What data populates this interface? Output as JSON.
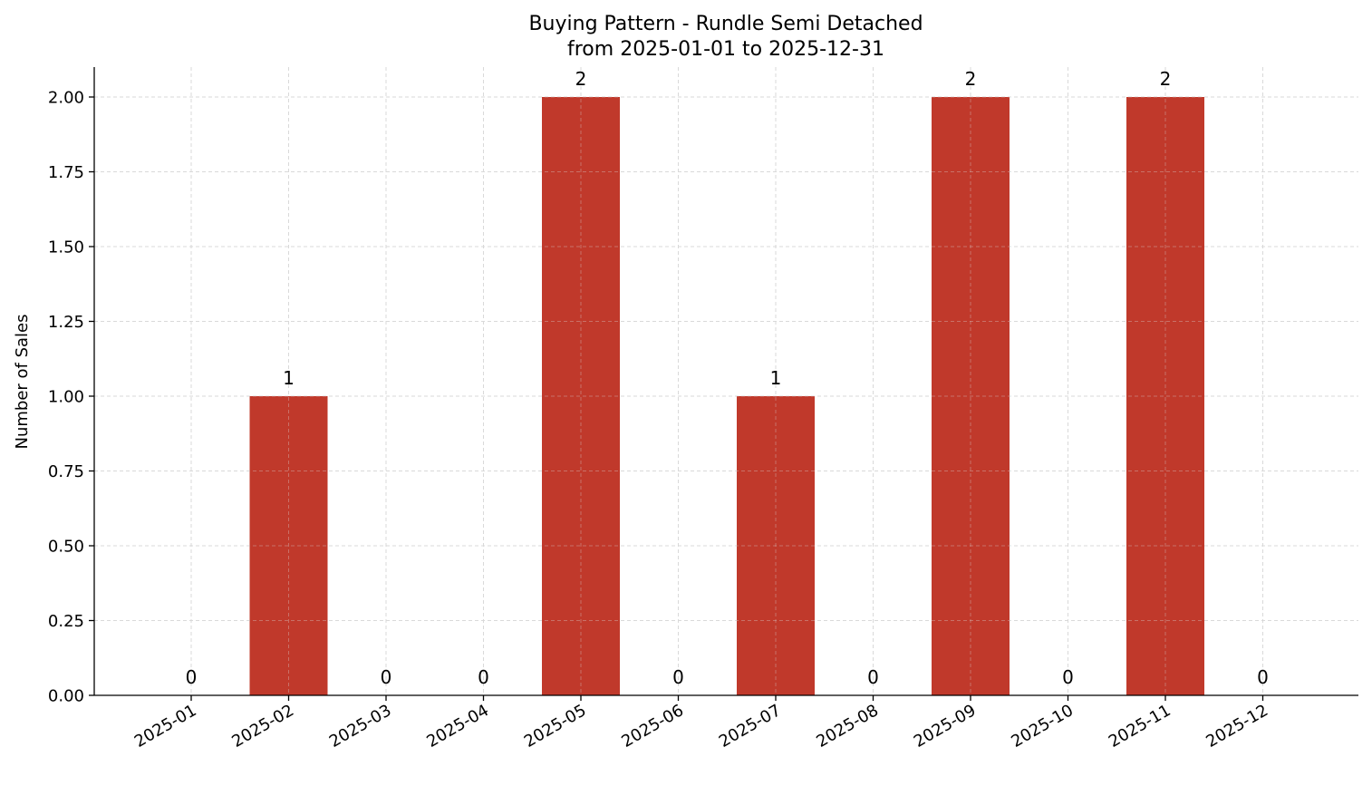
{
  "chart_data": {
    "type": "bar",
    "title_line1": "Buying Pattern - Rundle Semi Detached",
    "title_line2": "from 2025-01-01 to 2025-12-31",
    "xlabel": "",
    "ylabel": "Number of Sales",
    "categories": [
      "2025-01",
      "2025-02",
      "2025-03",
      "2025-04",
      "2025-05",
      "2025-06",
      "2025-07",
      "2025-08",
      "2025-09",
      "2025-10",
      "2025-11",
      "2025-12"
    ],
    "values": [
      0,
      1,
      0,
      0,
      2,
      0,
      1,
      0,
      2,
      0,
      2,
      0
    ],
    "data_labels": [
      "0",
      "1",
      "0",
      "0",
      "2",
      "0",
      "1",
      "0",
      "2",
      "0",
      "2",
      "0"
    ],
    "ylim": [
      0,
      2.1
    ],
    "yticks": [
      0,
      0.25,
      0.5,
      0.75,
      1.0,
      1.25,
      1.5,
      1.75,
      2.0
    ],
    "ytick_labels": [
      "0.00",
      "0.25",
      "0.50",
      "0.75",
      "1.00",
      "1.25",
      "1.50",
      "1.75",
      "2.00"
    ],
    "grid": true,
    "bar_color": "#c0392b",
    "grid_color": "#d9d9d9"
  }
}
